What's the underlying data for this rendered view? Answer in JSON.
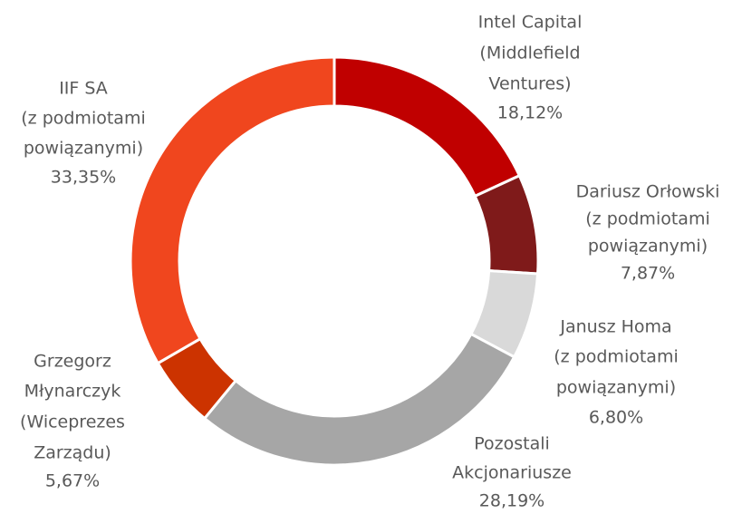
{
  "chart_data": {
    "type": "donut",
    "categories": [
      [
        "Intel Capital",
        "(Middlefield",
        "Ventures)"
      ],
      [
        "Dariusz Orłowski",
        "(z podmiotami",
        "powiązanymi)"
      ],
      [
        "Janusz Homa",
        "(z podmiotami",
        "powiązanymi)"
      ],
      [
        "Pozostali",
        "Akcjonariusze"
      ],
      [
        "Grzegorz",
        "Młynarczyk",
        "(Wiceprezes",
        "Zarządu)"
      ],
      [
        "IIF SA",
        "(z podmiotami",
        "powiązanymi)"
      ]
    ],
    "values": [
      18.12,
      7.87,
      6.8,
      28.19,
      5.67,
      33.35
    ],
    "value_labels": [
      "18,12%",
      "7,87%",
      "6,80%",
      "28,19%",
      "5,67%",
      "33,35%"
    ],
    "colors": [
      "#c00000",
      "#7f1a1a",
      "#d9d9d9",
      "#a6a6a6",
      "#cc3300",
      "#f0461e"
    ]
  }
}
